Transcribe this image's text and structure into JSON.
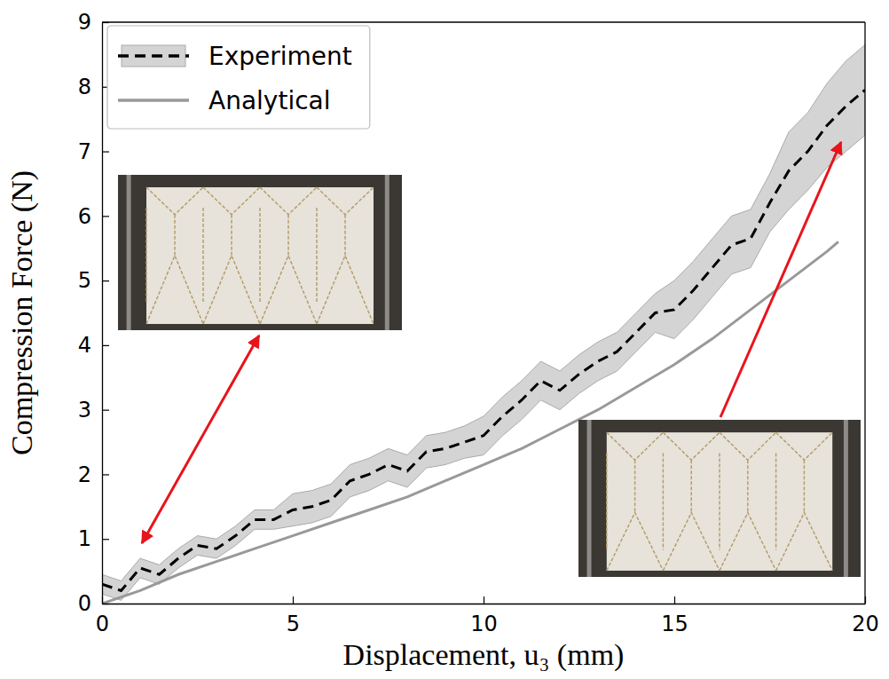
{
  "chart_data": {
    "type": "line",
    "x_label": "Displacement, u₃ (mm)",
    "y_label": "Compression Force (N)",
    "xlim": [
      0,
      20
    ],
    "xticks": [
      0,
      5,
      10,
      15,
      20
    ],
    "ylim": [
      0,
      9
    ],
    "yticks": [
      0,
      1,
      2,
      3,
      4,
      5,
      6,
      7,
      8,
      9
    ],
    "grid": false,
    "legend": "upper left",
    "series": [
      {
        "name": "Experiment",
        "color": "#000000",
        "line_style": "dashed",
        "x": [
          0,
          0.5,
          1,
          1.5,
          2,
          2.5,
          3,
          3.5,
          4,
          4.5,
          5,
          5.5,
          6,
          6.5,
          7,
          7.5,
          8,
          8.5,
          9,
          9.5,
          10,
          10.5,
          11,
          11.5,
          12,
          12.5,
          13,
          13.5,
          14,
          14.5,
          15,
          15.5,
          16,
          16.5,
          17,
          17.5,
          18,
          18.5,
          19,
          19.5,
          20
        ],
        "values": [
          0.3,
          0.2,
          0.55,
          0.45,
          0.7,
          0.9,
          0.85,
          1.05,
          1.3,
          1.3,
          1.45,
          1.5,
          1.6,
          1.9,
          2.0,
          2.15,
          2.05,
          2.35,
          2.4,
          2.5,
          2.6,
          2.9,
          3.15,
          3.45,
          3.3,
          3.55,
          3.75,
          3.9,
          4.2,
          4.5,
          4.55,
          4.85,
          5.2,
          5.55,
          5.65,
          6.2,
          6.7,
          7.0,
          7.4,
          7.7,
          7.95
        ],
        "lower": [
          0.15,
          0.05,
          0.4,
          0.3,
          0.55,
          0.75,
          0.7,
          0.9,
          1.15,
          1.15,
          1.2,
          1.25,
          1.35,
          1.65,
          1.75,
          1.9,
          1.8,
          2.1,
          2.15,
          2.25,
          2.3,
          2.6,
          2.85,
          3.15,
          3.0,
          3.25,
          3.45,
          3.6,
          3.9,
          4.2,
          4.1,
          4.4,
          4.75,
          5.1,
          5.2,
          5.75,
          6.1,
          6.4,
          6.75,
          7.0,
          7.25
        ],
        "upper": [
          0.45,
          0.35,
          0.7,
          0.6,
          0.85,
          1.05,
          1.0,
          1.2,
          1.45,
          1.45,
          1.7,
          1.75,
          1.85,
          2.15,
          2.25,
          2.4,
          2.3,
          2.6,
          2.65,
          2.75,
          2.9,
          3.2,
          3.45,
          3.75,
          3.6,
          3.85,
          4.05,
          4.2,
          4.5,
          4.8,
          5.0,
          5.3,
          5.65,
          6.0,
          6.1,
          6.65,
          7.3,
          7.6,
          8.05,
          8.4,
          8.65
        ]
      },
      {
        "name": "Analytical",
        "color": "#999999",
        "line_style": "solid",
        "x": [
          0,
          1,
          2,
          3,
          4,
          5,
          6,
          7,
          8,
          9,
          10,
          11,
          12,
          13,
          14,
          15,
          16,
          17,
          18,
          19,
          19.3
        ],
        "values": [
          0,
          0.2,
          0.45,
          0.65,
          0.85,
          1.05,
          1.25,
          1.45,
          1.65,
          1.9,
          2.15,
          2.4,
          2.7,
          3.0,
          3.35,
          3.7,
          4.1,
          4.55,
          5.0,
          5.45,
          5.6
        ]
      }
    ]
  }
}
